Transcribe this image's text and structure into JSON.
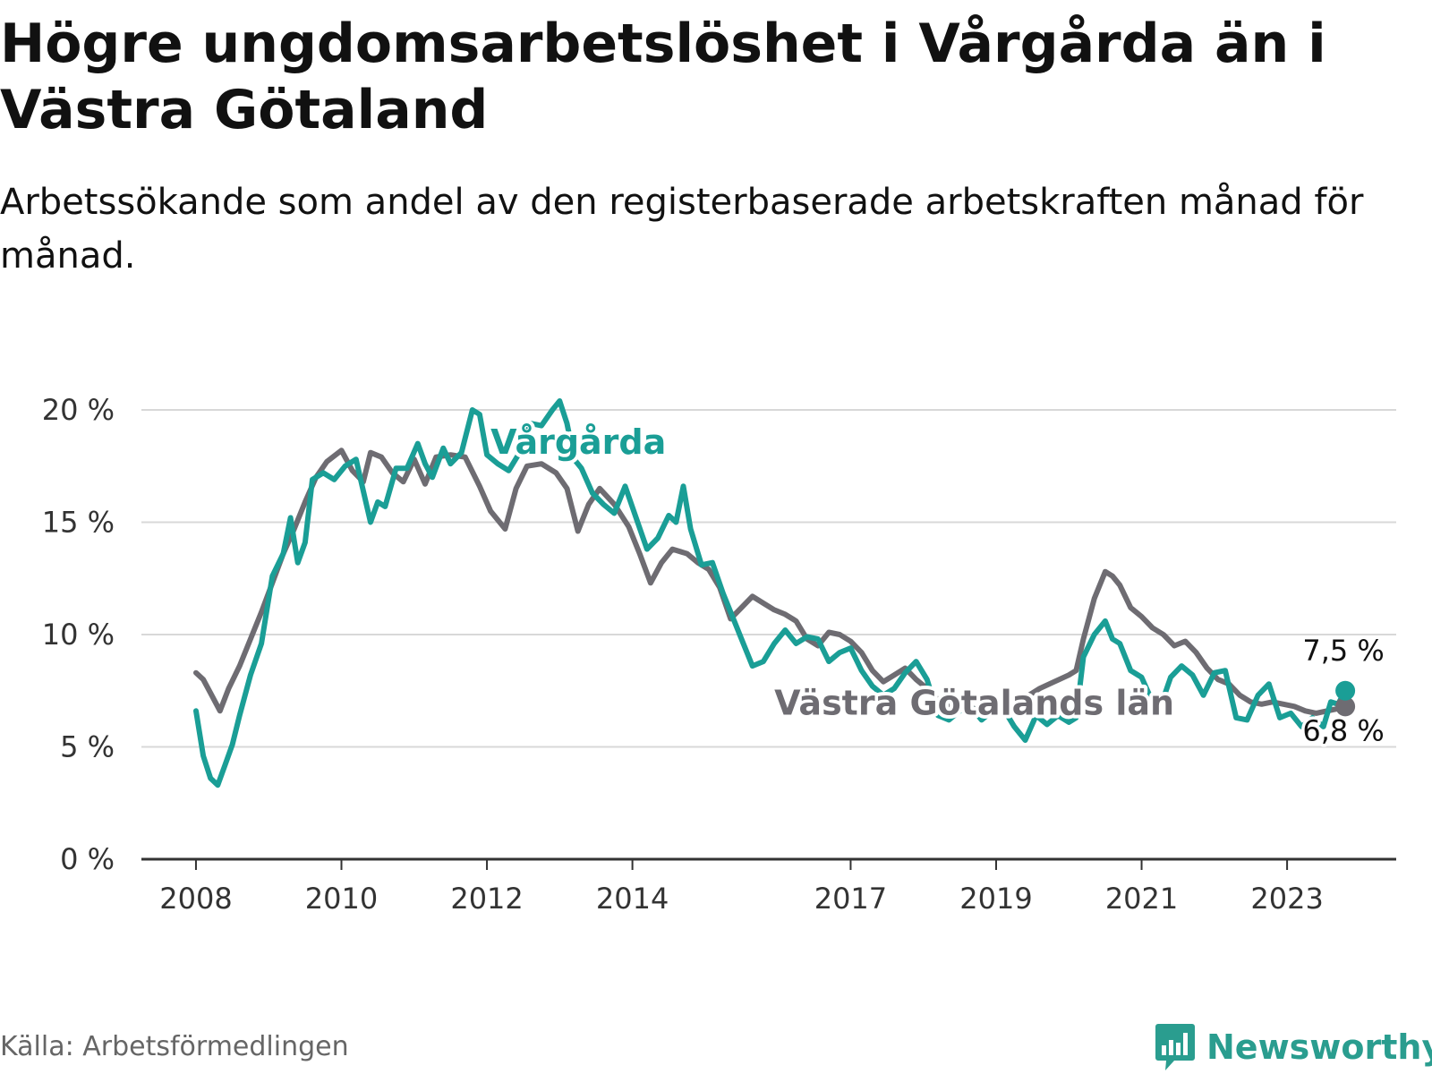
{
  "title": "Högre ungdomsarbetslöshet i Vårgårda än i Västra Götaland",
  "subtitle": "Arbetssökande som andel av den registerbaserade arbetskraften månad för månad.",
  "source": "Källa: Arbetsförmedlingen",
  "brand": "Newsworthy",
  "colors": {
    "vargarda": "#1a9e96",
    "lan": "#6e6c72",
    "grid": "#d8d8d8",
    "axis": "#333333",
    "brand": "#2a9d8f"
  },
  "chart_data": {
    "type": "line",
    "title": "Högre ungdomsarbetslöshet i Vårgårda än i Västra Götaland",
    "xlabel": "",
    "ylabel": "",
    "y_ticks": [
      {
        "value": 0,
        "label": "0 %"
      },
      {
        "value": 5,
        "label": "5 %"
      },
      {
        "value": 10,
        "label": "10 %"
      },
      {
        "value": 15,
        "label": "15 %"
      },
      {
        "value": 20,
        "label": "20 %"
      }
    ],
    "ylim": [
      0,
      20
    ],
    "x_ticks": [
      {
        "value": 2008,
        "label": "2008"
      },
      {
        "value": 2010,
        "label": "2010"
      },
      {
        "value": 2012,
        "label": "2012"
      },
      {
        "value": 2014,
        "label": "2014"
      },
      {
        "value": 2017,
        "label": "2017"
      },
      {
        "value": 2019,
        "label": "2019"
      },
      {
        "value": 2021,
        "label": "2021"
      },
      {
        "value": 2023,
        "label": "2023"
      }
    ],
    "xlim": [
      2007.25,
      2024.5
    ],
    "series": [
      {
        "name": "Västra Götalands län",
        "key": "lan",
        "points": [
          [
            2008.0,
            8.3
          ],
          [
            2008.1,
            8.0
          ],
          [
            2008.2,
            7.4
          ],
          [
            2008.33,
            6.6
          ],
          [
            2008.45,
            7.6
          ],
          [
            2008.6,
            8.6
          ],
          [
            2008.75,
            9.8
          ],
          [
            2008.9,
            11.0
          ],
          [
            2009.05,
            12.3
          ],
          [
            2009.2,
            13.6
          ],
          [
            2009.35,
            14.7
          ],
          [
            2009.5,
            15.9
          ],
          [
            2009.65,
            17.0
          ],
          [
            2009.8,
            17.7
          ],
          [
            2010.0,
            18.2
          ],
          [
            2010.15,
            17.3
          ],
          [
            2010.3,
            16.8
          ],
          [
            2010.4,
            18.1
          ],
          [
            2010.55,
            17.9
          ],
          [
            2010.7,
            17.2
          ],
          [
            2010.85,
            16.8
          ],
          [
            2011.0,
            17.8
          ],
          [
            2011.15,
            16.7
          ],
          [
            2011.3,
            17.9
          ],
          [
            2011.5,
            18.0
          ],
          [
            2011.7,
            17.9
          ],
          [
            2011.9,
            16.6
          ],
          [
            2012.05,
            15.5
          ],
          [
            2012.25,
            14.7
          ],
          [
            2012.4,
            16.5
          ],
          [
            2012.55,
            17.5
          ],
          [
            2012.75,
            17.6
          ],
          [
            2012.95,
            17.2
          ],
          [
            2013.1,
            16.5
          ],
          [
            2013.25,
            14.6
          ],
          [
            2013.4,
            15.8
          ],
          [
            2013.55,
            16.5
          ],
          [
            2013.75,
            15.8
          ],
          [
            2013.95,
            14.8
          ],
          [
            2014.1,
            13.6
          ],
          [
            2014.25,
            12.3
          ],
          [
            2014.4,
            13.2
          ],
          [
            2014.55,
            13.8
          ],
          [
            2014.75,
            13.6
          ],
          [
            2014.9,
            13.2
          ],
          [
            2015.05,
            12.9
          ],
          [
            2015.2,
            12.1
          ],
          [
            2015.35,
            10.7
          ],
          [
            2015.5,
            11.2
          ],
          [
            2015.65,
            11.7
          ],
          [
            2015.8,
            11.4
          ],
          [
            2015.95,
            11.1
          ],
          [
            2016.1,
            10.9
          ],
          [
            2016.25,
            10.6
          ],
          [
            2016.4,
            9.8
          ],
          [
            2016.55,
            9.5
          ],
          [
            2016.7,
            10.1
          ],
          [
            2016.85,
            10.0
          ],
          [
            2017.0,
            9.7
          ],
          [
            2017.15,
            9.2
          ],
          [
            2017.3,
            8.4
          ],
          [
            2017.45,
            7.9
          ],
          [
            2017.6,
            8.2
          ],
          [
            2017.75,
            8.5
          ],
          [
            2017.9,
            8.0
          ],
          [
            2018.05,
            7.6
          ],
          [
            2018.2,
            7.1
          ],
          [
            2018.4,
            6.7
          ],
          [
            2018.6,
            6.8
          ],
          [
            2018.8,
            6.6
          ],
          [
            2019.0,
            6.9
          ],
          [
            2019.15,
            7.1
          ],
          [
            2019.3,
            7.0
          ],
          [
            2019.45,
            7.3
          ],
          [
            2019.6,
            7.6
          ],
          [
            2019.8,
            7.9
          ],
          [
            2020.0,
            8.2
          ],
          [
            2020.1,
            8.4
          ],
          [
            2020.2,
            9.8
          ],
          [
            2020.35,
            11.6
          ],
          [
            2020.5,
            12.8
          ],
          [
            2020.6,
            12.6
          ],
          [
            2020.7,
            12.2
          ],
          [
            2020.85,
            11.2
          ],
          [
            2021.0,
            10.8
          ],
          [
            2021.15,
            10.3
          ],
          [
            2021.3,
            10.0
          ],
          [
            2021.45,
            9.5
          ],
          [
            2021.6,
            9.7
          ],
          [
            2021.75,
            9.2
          ],
          [
            2021.9,
            8.5
          ],
          [
            2022.05,
            8.0
          ],
          [
            2022.2,
            7.8
          ],
          [
            2022.35,
            7.3
          ],
          [
            2022.5,
            7.0
          ],
          [
            2022.65,
            6.9
          ],
          [
            2022.8,
            7.0
          ],
          [
            2022.95,
            6.9
          ],
          [
            2023.1,
            6.8
          ],
          [
            2023.25,
            6.6
          ],
          [
            2023.4,
            6.5
          ],
          [
            2023.55,
            6.6
          ],
          [
            2023.7,
            6.7
          ],
          [
            2023.8,
            6.8
          ]
        ],
        "end_value": 6.8,
        "end_label": "6,8 %",
        "series_label": "Västra Götalands län"
      },
      {
        "name": "Vårgårda",
        "key": "vargarda",
        "points": [
          [
            2008.0,
            6.6
          ],
          [
            2008.1,
            4.6
          ],
          [
            2008.2,
            3.6
          ],
          [
            2008.3,
            3.3
          ],
          [
            2008.4,
            4.2
          ],
          [
            2008.5,
            5.1
          ],
          [
            2008.6,
            6.4
          ],
          [
            2008.75,
            8.2
          ],
          [
            2008.9,
            9.6
          ],
          [
            2009.05,
            12.6
          ],
          [
            2009.2,
            13.6
          ],
          [
            2009.3,
            15.2
          ],
          [
            2009.4,
            13.2
          ],
          [
            2009.5,
            14.1
          ],
          [
            2009.6,
            16.9
          ],
          [
            2009.75,
            17.2
          ],
          [
            2009.9,
            16.9
          ],
          [
            2010.05,
            17.5
          ],
          [
            2010.2,
            17.8
          ],
          [
            2010.3,
            16.4
          ],
          [
            2010.4,
            15.0
          ],
          [
            2010.5,
            15.9
          ],
          [
            2010.6,
            15.7
          ],
          [
            2010.75,
            17.4
          ],
          [
            2010.9,
            17.4
          ],
          [
            2011.05,
            18.5
          ],
          [
            2011.15,
            17.6
          ],
          [
            2011.25,
            17.0
          ],
          [
            2011.4,
            18.3
          ],
          [
            2011.5,
            17.6
          ],
          [
            2011.65,
            18.1
          ],
          [
            2011.8,
            20.0
          ],
          [
            2011.9,
            19.8
          ],
          [
            2012.0,
            18.0
          ],
          [
            2012.15,
            17.6
          ],
          [
            2012.3,
            17.3
          ],
          [
            2012.45,
            18.1
          ],
          [
            2012.6,
            19.4
          ],
          [
            2012.75,
            19.3
          ],
          [
            2012.9,
            20.0
          ],
          [
            2013.0,
            20.4
          ],
          [
            2013.1,
            19.4
          ],
          [
            2013.2,
            17.8
          ],
          [
            2013.3,
            17.4
          ],
          [
            2013.45,
            16.3
          ],
          [
            2013.6,
            15.8
          ],
          [
            2013.75,
            15.4
          ],
          [
            2013.9,
            16.6
          ],
          [
            2014.05,
            15.2
          ],
          [
            2014.2,
            13.8
          ],
          [
            2014.35,
            14.3
          ],
          [
            2014.5,
            15.3
          ],
          [
            2014.6,
            15.0
          ],
          [
            2014.7,
            16.6
          ],
          [
            2014.8,
            14.7
          ],
          [
            2014.95,
            13.1
          ],
          [
            2015.1,
            13.2
          ],
          [
            2015.25,
            11.8
          ],
          [
            2015.4,
            10.6
          ],
          [
            2015.5,
            9.8
          ],
          [
            2015.65,
            8.6
          ],
          [
            2015.8,
            8.8
          ],
          [
            2015.95,
            9.6
          ],
          [
            2016.1,
            10.2
          ],
          [
            2016.25,
            9.6
          ],
          [
            2016.4,
            9.9
          ],
          [
            2016.55,
            9.8
          ],
          [
            2016.7,
            8.8
          ],
          [
            2016.85,
            9.2
          ],
          [
            2017.0,
            9.4
          ],
          [
            2017.15,
            8.4
          ],
          [
            2017.3,
            7.7
          ],
          [
            2017.45,
            7.3
          ],
          [
            2017.6,
            7.6
          ],
          [
            2017.75,
            8.3
          ],
          [
            2017.9,
            8.8
          ],
          [
            2018.05,
            8.0
          ],
          [
            2018.2,
            6.4
          ],
          [
            2018.35,
            6.2
          ],
          [
            2018.5,
            6.6
          ],
          [
            2018.65,
            6.8
          ],
          [
            2018.8,
            6.2
          ],
          [
            2018.95,
            6.6
          ],
          [
            2019.1,
            6.7
          ],
          [
            2019.25,
            5.9
          ],
          [
            2019.4,
            5.3
          ],
          [
            2019.55,
            6.4
          ],
          [
            2019.7,
            6.0
          ],
          [
            2019.85,
            6.4
          ],
          [
            2020.0,
            6.1
          ],
          [
            2020.1,
            6.3
          ],
          [
            2020.2,
            9.0
          ],
          [
            2020.35,
            10.0
          ],
          [
            2020.5,
            10.6
          ],
          [
            2020.6,
            9.8
          ],
          [
            2020.7,
            9.6
          ],
          [
            2020.85,
            8.4
          ],
          [
            2021.0,
            8.1
          ],
          [
            2021.15,
            7.0
          ],
          [
            2021.25,
            6.7
          ],
          [
            2021.4,
            8.1
          ],
          [
            2021.55,
            8.6
          ],
          [
            2021.7,
            8.2
          ],
          [
            2021.85,
            7.3
          ],
          [
            2022.0,
            8.3
          ],
          [
            2022.15,
            8.4
          ],
          [
            2022.3,
            6.3
          ],
          [
            2022.45,
            6.2
          ],
          [
            2022.6,
            7.3
          ],
          [
            2022.75,
            7.8
          ],
          [
            2022.9,
            6.3
          ],
          [
            2023.05,
            6.5
          ],
          [
            2023.2,
            5.9
          ],
          [
            2023.35,
            6.3
          ],
          [
            2023.5,
            5.9
          ],
          [
            2023.6,
            7.0
          ],
          [
            2023.7,
            6.9
          ],
          [
            2023.8,
            7.5
          ]
        ],
        "end_value": 7.5,
        "end_label": "7,5 %",
        "series_label": "Vårgårda"
      }
    ]
  }
}
